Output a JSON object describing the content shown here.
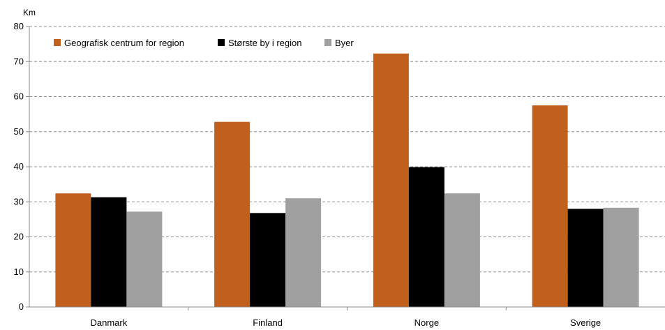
{
  "chart_data": {
    "type": "bar",
    "ylabel": "Km",
    "ylim": [
      0,
      80
    ],
    "yticks": [
      0,
      10,
      20,
      30,
      40,
      50,
      60,
      70,
      80
    ],
    "categories": [
      "Danmark",
      "Finland",
      "Norge",
      "Sverige"
    ],
    "series": [
      {
        "name": "Geografisk centrum for region",
        "color": "#c0601c",
        "values": [
          32.4,
          52.8,
          72.3,
          57.5
        ]
      },
      {
        "name": "Største by i region",
        "color": "#000000",
        "values": [
          31.3,
          26.8,
          39.9,
          28.0
        ]
      },
      {
        "name": "Byer",
        "color": "#a0a0a0",
        "values": [
          27.2,
          31.0,
          32.4,
          28.3
        ]
      }
    ],
    "grid": true,
    "legend_position": "top-left"
  }
}
